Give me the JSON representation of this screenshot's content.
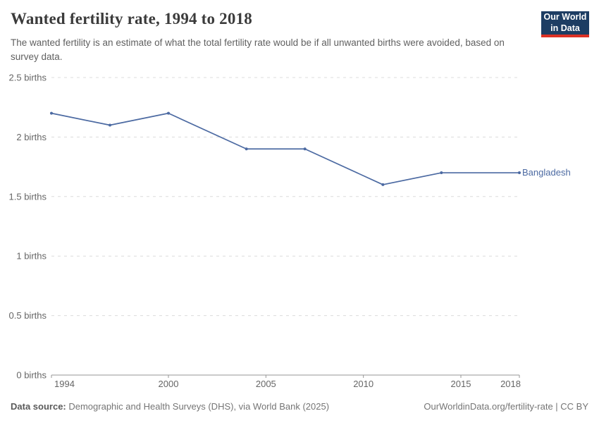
{
  "header": {
    "title": "Wanted fertility rate, 1994 to 2018",
    "subtitle": "The wanted fertility is an estimate of what the total fertility rate would be if all unwanted births were avoided, based on survey data.",
    "logo": {
      "line1": "Our World",
      "line2": "in Data",
      "bg_color": "#1d3d63",
      "accent_color": "#dc3125"
    }
  },
  "chart_data": {
    "type": "line",
    "title": "Wanted fertility rate, 1994 to 2018",
    "xlabel": "",
    "ylabel": "",
    "x": [
      1994,
      1997,
      2000,
      2004,
      2007,
      2011,
      2014,
      2018
    ],
    "series": [
      {
        "name": "Bangladesh",
        "values": [
          2.2,
          2.1,
          2.2,
          1.9,
          1.9,
          1.6,
          1.7,
          1.7
        ],
        "color": "#4c6aa2"
      }
    ],
    "xlim": [
      1994,
      2018
    ],
    "ylim": [
      0,
      2.5
    ],
    "xticks": [
      1994,
      2000,
      2005,
      2010,
      2015,
      2018
    ],
    "yticks": [
      0,
      0.5,
      1,
      1.5,
      2,
      2.5
    ],
    "y_unit": "births",
    "grid": true,
    "legend": "inline-end-label",
    "gridline_color": "#dcdcdc",
    "axis_color": "#969696",
    "tick_label_color": "#666666"
  },
  "footer": {
    "source_label": "Data source:",
    "source_text": " Demographic and Health Surveys (DHS), via World Bank (2025)",
    "credit": "OurWorldinData.org/fertility-rate | CC BY"
  }
}
